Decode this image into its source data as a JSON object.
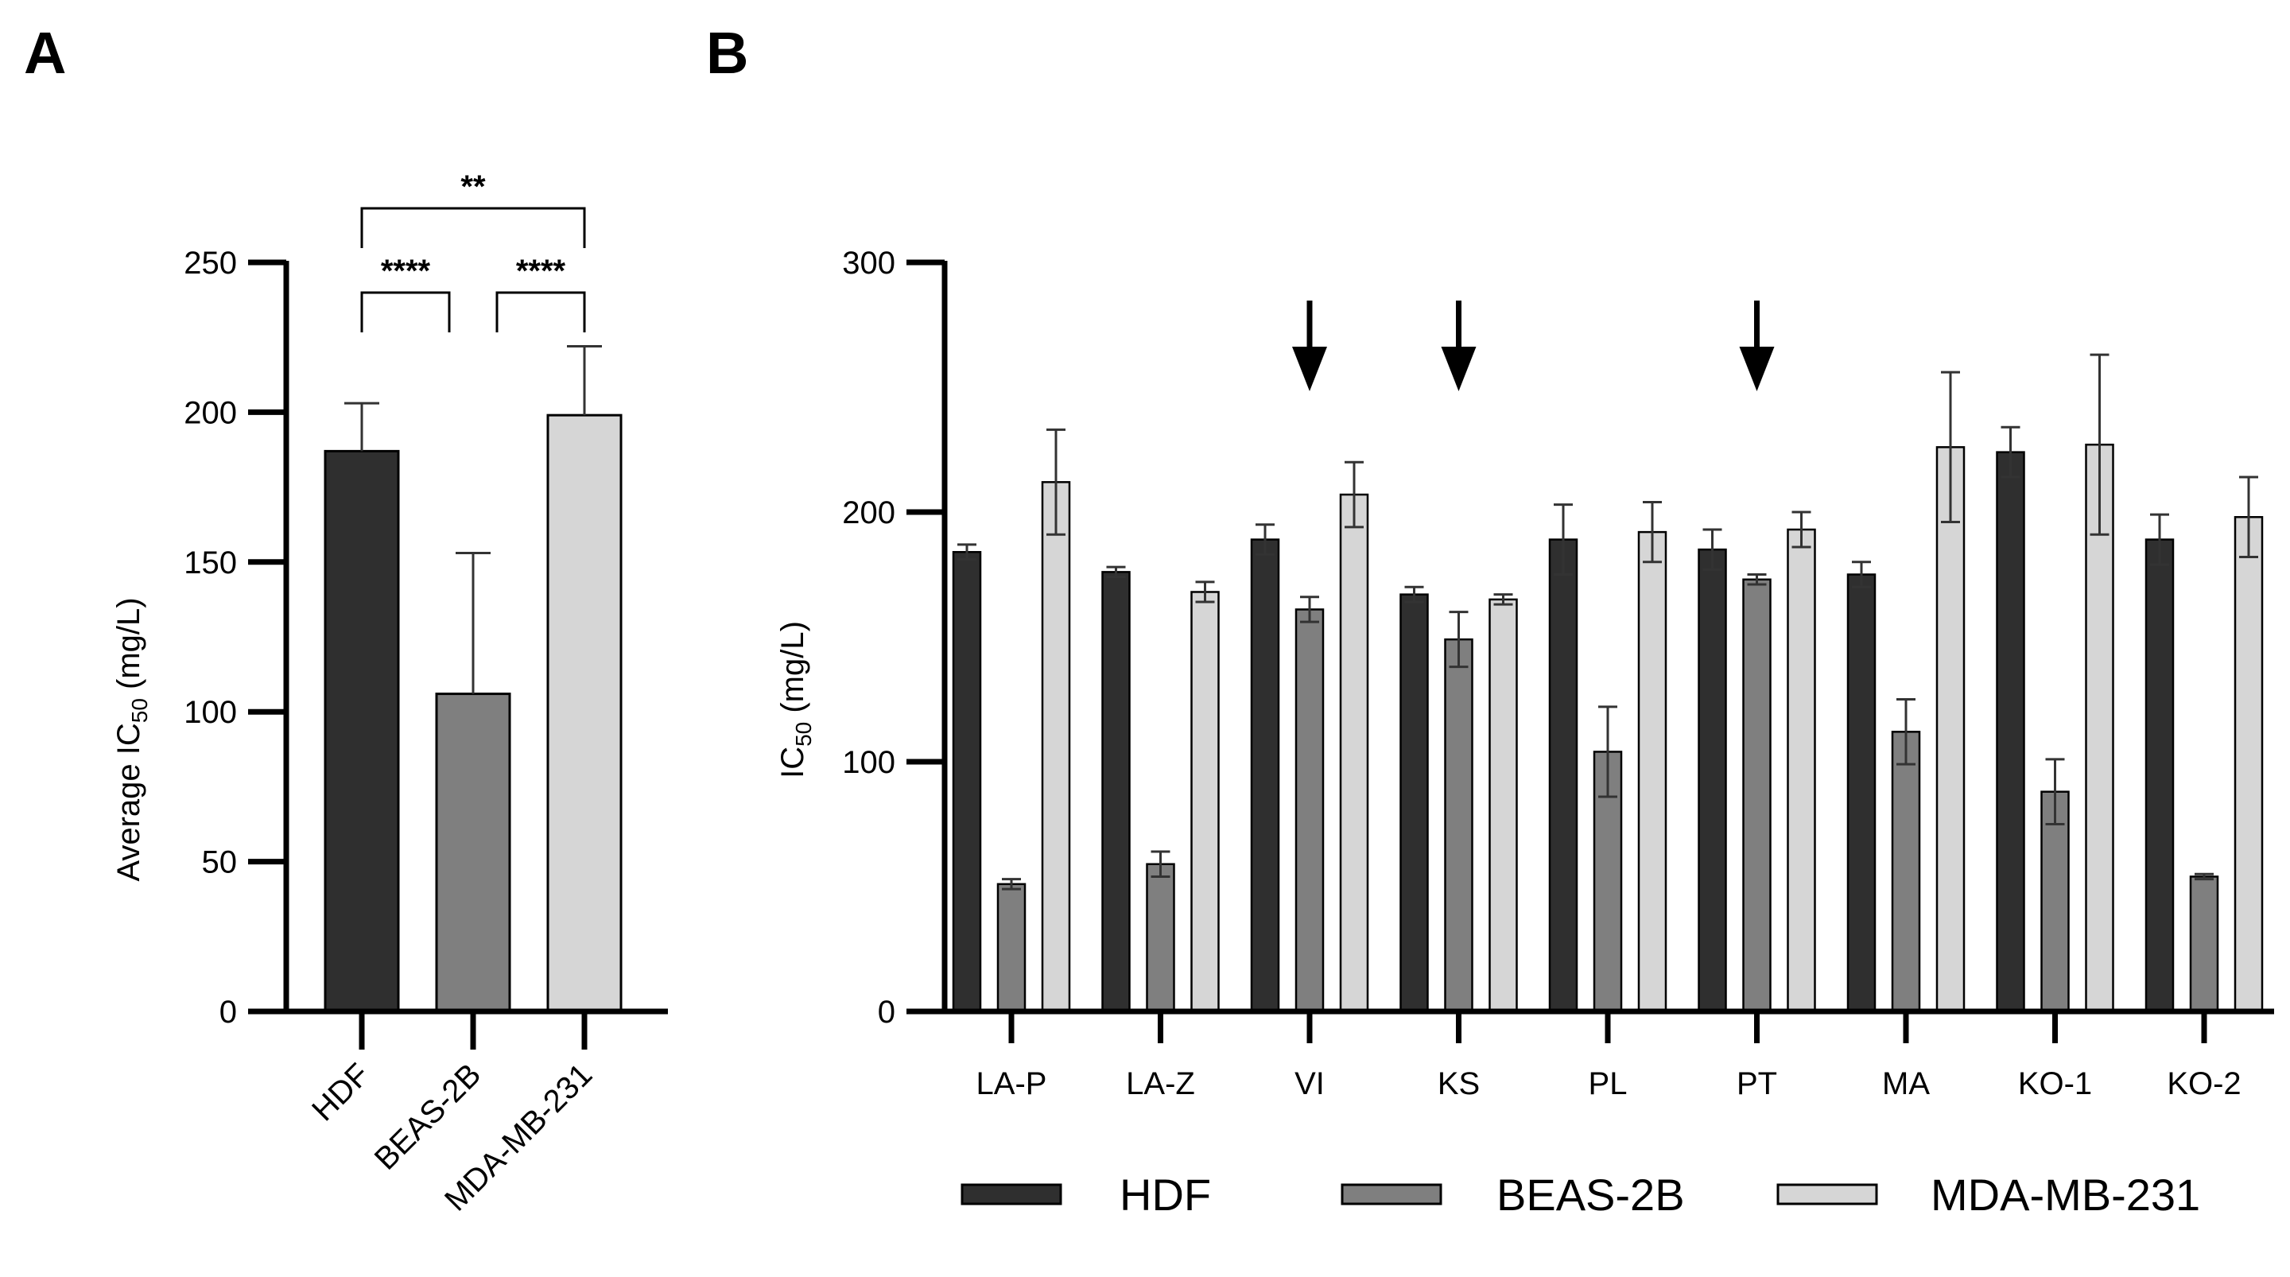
{
  "panels": {
    "a_label": "A",
    "b_label": "B"
  },
  "colors": {
    "hdf": "#2f2f2f",
    "beas": "#7f7f7f",
    "mda": "#d6d6d6",
    "axis": "#000000",
    "err": "#333333"
  },
  "chart_data": [
    {
      "id": "A",
      "type": "bar",
      "categories": [
        "HDF",
        "BEAS-2B",
        "MDA-MB-231"
      ],
      "values": [
        187,
        106,
        199
      ],
      "errors": [
        16,
        47,
        23
      ],
      "ylabel_prefix": "Average IC",
      "ylabel_sub": "50",
      "ylabel_suffix": " (mg/L)",
      "ylim": [
        0,
        250
      ],
      "yticks": [
        "0",
        "50",
        "100",
        "150",
        "200",
        "250"
      ],
      "significance": [
        {
          "from": 0,
          "to": 2,
          "label": "**"
        },
        {
          "from": 0,
          "to": 1,
          "label": "****"
        },
        {
          "from": 1,
          "to": 2,
          "label": "****"
        }
      ]
    },
    {
      "id": "B",
      "type": "bar",
      "categories": [
        "LA-P",
        "LA-Z",
        "VI",
        "KS",
        "PL",
        "PT",
        "MA",
        "KO-1",
        "KO-2"
      ],
      "series": [
        {
          "name": "HDF",
          "values": [
            184,
            176,
            189,
            167,
            189,
            185,
            175,
            224,
            189
          ],
          "errors": [
            3,
            2,
            6,
            3,
            14,
            8,
            5,
            10,
            10
          ]
        },
        {
          "name": "BEAS-2B",
          "values": [
            51,
            59,
            161,
            149,
            104,
            173,
            112,
            88,
            54
          ],
          "errors": [
            2,
            5,
            5,
            11,
            18,
            2,
            13,
            13,
            1
          ]
        },
        {
          "name": "MDA-MB-231",
          "values": [
            212,
            168,
            207,
            165,
            192,
            193,
            226,
            227,
            198
          ],
          "errors": [
            21,
            4,
            13,
            2,
            12,
            7,
            30,
            36,
            16
          ]
        }
      ],
      "ylabel_prefix": "IC",
      "ylabel_sub": "50",
      "ylabel_suffix": " (mg/L)",
      "ylim": [
        0,
        300
      ],
      "yticks": [
        "0",
        "100",
        "200",
        "300"
      ],
      "arrows_at": [
        "VI",
        "KS",
        "PT"
      ],
      "legend": {
        "placement": "bottom",
        "entries": [
          "HDF",
          "BEAS-2B",
          "MDA-MB-231"
        ]
      }
    }
  ]
}
